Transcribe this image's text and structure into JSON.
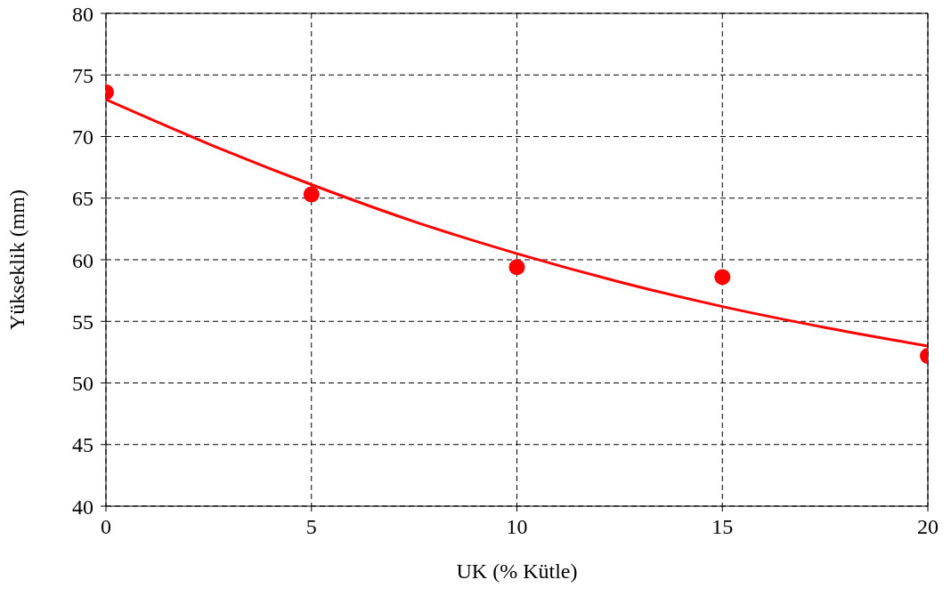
{
  "chart_data": {
    "type": "scatter",
    "xlabel": "UK (% Kütle)",
    "ylabel": "Yükseklik (mm)",
    "xlim": [
      0,
      20
    ],
    "xticks": [
      0,
      5,
      10,
      15,
      20
    ],
    "ylim": [
      40,
      80
    ],
    "yticks": [
      40,
      45,
      50,
      55,
      60,
      65,
      70,
      75,
      80
    ],
    "grid": true,
    "legend": false,
    "series": [
      {
        "color": "#ff0000",
        "marker": "circle",
        "x": [
          0,
          5,
          10,
          15,
          20
        ],
        "values": [
          73.6,
          65.3,
          59.4,
          58.6,
          52.2
        ]
      },
      {
        "type": "line",
        "color": "#ff0000",
        "marker": "none",
        "line_style": "solid",
        "x": [
          0,
          2.5,
          5,
          7.5,
          10,
          12.5,
          15,
          17.5,
          20
        ],
        "values": [
          73.0,
          69.4,
          66.1,
          63.1,
          60.5,
          58.2,
          56.2,
          54.5,
          53.0
        ]
      }
    ]
  }
}
